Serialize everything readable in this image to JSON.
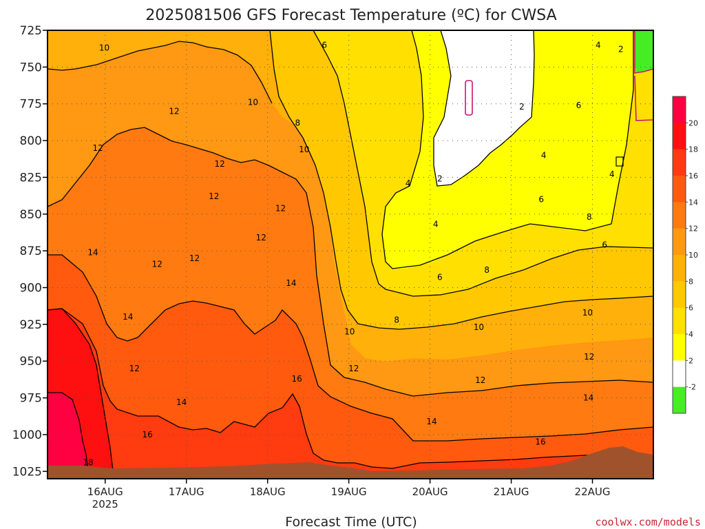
{
  "chart_data": {
    "type": "heatmap",
    "title": "2025081506 GFS Forecast Temperature (ºC) for CWSA",
    "xlabel": "Forecast Time (UTC)",
    "ylabel": "",
    "y_scale": "pressure (hPa), inverted",
    "yticks": [
      "725",
      "750",
      "775",
      "800",
      "825",
      "850",
      "875",
      "900",
      "925",
      "950",
      "975",
      "1000",
      "1025"
    ],
    "xticks": [
      {
        "label": "16AUG",
        "sub": "2025",
        "day": 16
      },
      {
        "label": "17AUG",
        "sub": "",
        "day": 17
      },
      {
        "label": "18AUG",
        "sub": "",
        "day": 18
      },
      {
        "label": "19AUG",
        "sub": "",
        "day": 19
      },
      {
        "label": "20AUG",
        "sub": "",
        "day": 20
      },
      {
        "label": "21AUG",
        "sub": "",
        "day": 21
      },
      {
        "label": "22AUG",
        "sub": "",
        "day": 22
      }
    ],
    "xlim": [
      15.29,
      22.75
    ],
    "ylim": [
      725,
      1030
    ],
    "grid": true,
    "colorbar": {
      "ticks": [
        "20",
        "18",
        "16",
        "14",
        "12",
        "10",
        "8",
        "6",
        "4",
        "2",
        "-2"
      ],
      "bins": [
        {
          "label": "20",
          "color": "#ff0040"
        },
        {
          "label": "18",
          "color": "#ff1010"
        },
        {
          "label": "16",
          "color": "#ff3b10"
        },
        {
          "label": "14",
          "color": "#ff5a0e"
        },
        {
          "label": "12",
          "color": "#ff7a10"
        },
        {
          "label": "10",
          "color": "#ff9812"
        },
        {
          "label": "8",
          "color": "#ffb00a"
        },
        {
          "label": "6",
          "color": "#ffc800"
        },
        {
          "label": "4",
          "color": "#ffe000"
        },
        {
          "label": "2",
          "color": "#ffff00"
        },
        {
          "label": "-2",
          "color": "#ffffff"
        },
        {
          "label": "",
          "color": "#44ee22"
        }
      ]
    },
    "contour_labels": [
      {
        "text": "10",
        "day": 15.99,
        "p": 737
      },
      {
        "text": "6",
        "day": 18.7,
        "p": 735
      },
      {
        "text": "4",
        "day": 22.07,
        "p": 735
      },
      {
        "text": "2",
        "day": 22.35,
        "p": 738
      },
      {
        "text": "10",
        "day": 17.82,
        "p": 774
      },
      {
        "text": "12",
        "day": 16.85,
        "p": 780
      },
      {
        "text": "8",
        "day": 18.37,
        "p": 788
      },
      {
        "text": "2",
        "day": 21.13,
        "p": 777
      },
      {
        "text": "6",
        "day": 21.83,
        "p": 776
      },
      {
        "text": "12",
        "day": 15.91,
        "p": 805
      },
      {
        "text": "10",
        "day": 18.45,
        "p": 806
      },
      {
        "text": "4",
        "day": 21.4,
        "p": 810
      },
      {
        "text": "12",
        "day": 17.41,
        "p": 816
      },
      {
        "text": "2",
        "day": 20.12,
        "p": 826
      },
      {
        "text": "4",
        "day": 19.73,
        "p": 829
      },
      {
        "text": "4",
        "day": 22.24,
        "p": 823
      },
      {
        "text": "12",
        "day": 17.34,
        "p": 838
      },
      {
        "text": "6",
        "day": 21.37,
        "p": 840
      },
      {
        "text": "12",
        "day": 18.16,
        "p": 846
      },
      {
        "text": "4",
        "day": 20.07,
        "p": 857
      },
      {
        "text": "8",
        "day": 21.96,
        "p": 852
      },
      {
        "text": "12",
        "day": 17.92,
        "p": 866
      },
      {
        "text": "6",
        "day": 22.15,
        "p": 871
      },
      {
        "text": "14",
        "day": 15.85,
        "p": 876
      },
      {
        "text": "12",
        "day": 16.64,
        "p": 884
      },
      {
        "text": "12",
        "day": 17.1,
        "p": 880
      },
      {
        "text": "6",
        "day": 20.12,
        "p": 893
      },
      {
        "text": "8",
        "day": 20.7,
        "p": 888
      },
      {
        "text": "14",
        "day": 18.29,
        "p": 897
      },
      {
        "text": "10",
        "day": 21.94,
        "p": 917
      },
      {
        "text": "14",
        "day": 16.28,
        "p": 920
      },
      {
        "text": "8",
        "day": 19.59,
        "p": 922
      },
      {
        "text": "10",
        "day": 19.01,
        "p": 930
      },
      {
        "text": "10",
        "day": 20.6,
        "p": 927
      },
      {
        "text": "12",
        "day": 21.96,
        "p": 947
      },
      {
        "text": "12",
        "day": 16.36,
        "p": 955
      },
      {
        "text": "12",
        "day": 19.06,
        "p": 955
      },
      {
        "text": "16",
        "day": 18.36,
        "p": 962
      },
      {
        "text": "12",
        "day": 20.62,
        "p": 963
      },
      {
        "text": "14",
        "day": 16.94,
        "p": 978
      },
      {
        "text": "14",
        "day": 21.95,
        "p": 975
      },
      {
        "text": "14",
        "day": 20.02,
        "p": 991
      },
      {
        "text": "16",
        "day": 16.52,
        "p": 1000
      },
      {
        "text": "16",
        "day": 21.36,
        "p": 1005
      },
      {
        "text": "18",
        "day": 15.79,
        "p": 1019
      }
    ]
  },
  "watermark": "coolwx.com/models",
  "colors": {
    "ground": "#a0522d",
    "frame": "#000000",
    "contour": "#000000",
    "freezing_contour": "#cc1177",
    "watermark": "#cc2233"
  }
}
